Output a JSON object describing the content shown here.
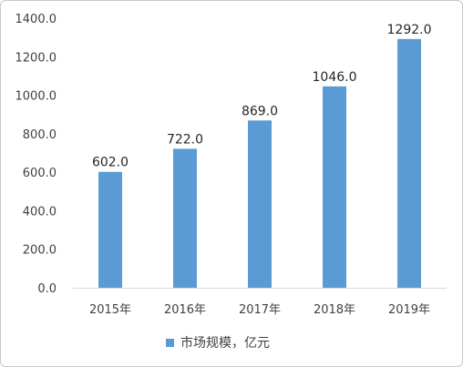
{
  "chart_data": {
    "type": "bar",
    "categories": [
      "2015年",
      "2016年",
      "2017年",
      "2018年",
      "2019年"
    ],
    "series": [
      {
        "name": "市场规模，亿元",
        "values": [
          602.0,
          722.0,
          869.0,
          1046.0,
          1292.0
        ],
        "color": "#5b9bd5"
      }
    ],
    "ylim": [
      0,
      1400
    ],
    "yticks": [
      0,
      200,
      400,
      600,
      800,
      1000,
      1200,
      1400
    ],
    "value_format_decimals": 1,
    "grid": false,
    "legend_position": "bottom"
  }
}
